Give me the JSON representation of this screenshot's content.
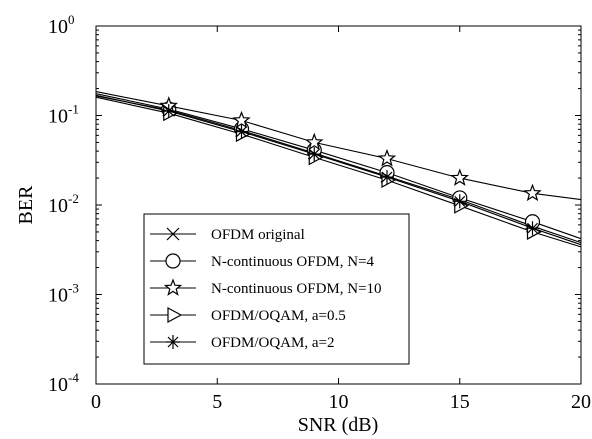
{
  "chart_data": {
    "type": "line",
    "title": "",
    "xlabel": "SNR (dB)",
    "ylabel": "BER",
    "xlim": [
      0,
      20
    ],
    "ylim": [
      0.0001,
      1
    ],
    "y_scale": "log",
    "grid": false,
    "legend_position": "lower-left",
    "x_ticks": [
      0,
      5,
      10,
      15,
      20
    ],
    "x_tick_labels": [
      "0",
      "5",
      "10",
      "15",
      "20"
    ],
    "y_ticks": [
      {
        "value": 1,
        "base": "10",
        "exp": "0"
      },
      {
        "value": 0.1,
        "base": "10",
        "exp": "-1"
      },
      {
        "value": 0.01,
        "base": "10",
        "exp": "-2"
      },
      {
        "value": 0.001,
        "base": "10",
        "exp": "-3"
      },
      {
        "value": 0.0001,
        "base": "10",
        "exp": "-4"
      }
    ],
    "x": [
      0,
      3,
      6,
      9,
      12,
      15,
      18,
      20
    ],
    "series": [
      {
        "name": "OFDM original",
        "marker": "x-mark",
        "values": [
          0.165,
          0.115,
          0.068,
          0.038,
          0.021,
          0.0115,
          0.0058,
          0.0038
        ]
      },
      {
        "name": "N-continuous OFDM, N=4",
        "marker": "circle",
        "values": [
          0.175,
          0.118,
          0.071,
          0.041,
          0.023,
          0.012,
          0.0065,
          0.0042
        ]
      },
      {
        "name": "N-continuous OFDM, N=10",
        "marker": "star",
        "values": [
          0.185,
          0.128,
          0.088,
          0.05,
          0.033,
          0.02,
          0.0135,
          0.0115
        ]
      },
      {
        "name": "OFDM/OQAM, a=0.5",
        "marker": "triangle-right",
        "values": [
          0.16,
          0.106,
          0.062,
          0.034,
          0.019,
          0.0098,
          0.005,
          0.0034
        ]
      },
      {
        "name": "OFDM/OQAM, a=2",
        "marker": "asterisk",
        "values": [
          0.168,
          0.112,
          0.066,
          0.037,
          0.0205,
          0.011,
          0.0055,
          0.0036
        ]
      }
    ]
  }
}
